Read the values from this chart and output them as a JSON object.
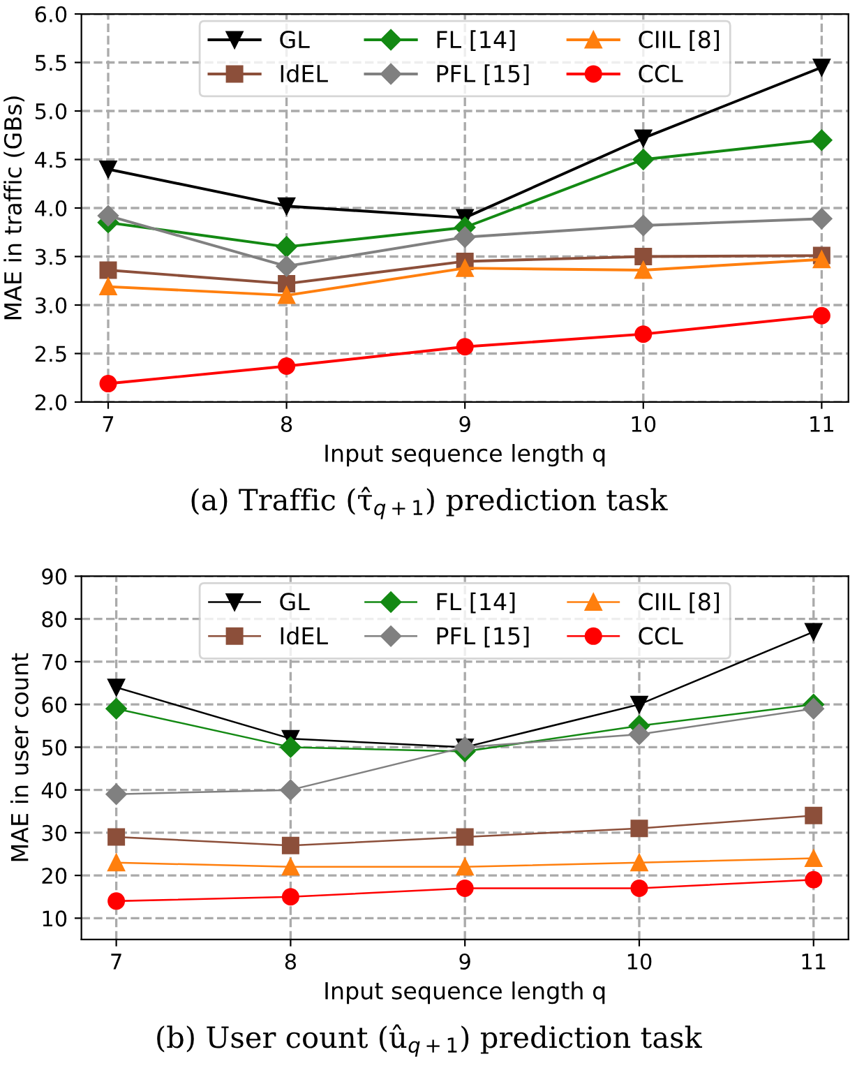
{
  "chart_data": [
    {
      "type": "line",
      "ylabel": "MAE in traffic (GBs)",
      "xlabel": "Input sequence length q",
      "x": [
        7,
        8,
        9,
        10,
        11
      ],
      "xlim": [
        6.85,
        11.15
      ],
      "xticks": [
        7,
        8,
        9,
        10,
        11
      ],
      "ylim": [
        2.0,
        6.0
      ],
      "yticks": [
        {
          "value": 2.0,
          "label": "2.0"
        },
        {
          "value": 2.5,
          "label": "2.5"
        },
        {
          "value": 3.0,
          "label": "3.0"
        },
        {
          "value": 3.5,
          "label": "3.5"
        },
        {
          "value": 4.0,
          "label": "4.0"
        },
        {
          "value": 4.5,
          "label": "4.5"
        },
        {
          "value": 5.0,
          "label": "5.0"
        },
        {
          "value": 5.5,
          "label": "5.5"
        },
        {
          "value": 6.0,
          "label": "6.0"
        }
      ],
      "grid": true,
      "legend": "top",
      "annotations": [
        "(a) Traffic (τ̂$_{q+1}$) prediction task"
      ],
      "series": [
        {
          "name": "GL",
          "color": "#000000",
          "marker": "triangle_down",
          "values": [
            4.4,
            4.02,
            3.9,
            4.72,
            5.45
          ]
        },
        {
          "name": "IdEL",
          "color": "#8c4f3a",
          "marker": "square",
          "values": [
            3.36,
            3.22,
            3.45,
            3.5,
            3.51
          ]
        },
        {
          "name": "FL [14]",
          "color": "#138913",
          "marker": "diamond",
          "values": [
            3.85,
            3.6,
            3.8,
            4.5,
            4.7
          ]
        },
        {
          "name": "PFL [15]",
          "color": "#808080",
          "marker": "diamond",
          "values": [
            3.92,
            3.4,
            3.7,
            3.82,
            3.89
          ]
        },
        {
          "name": "CIIL [8]",
          "color": "#ff7f0e",
          "marker": "triangle",
          "values": [
            3.19,
            3.1,
            3.38,
            3.36,
            3.47
          ]
        },
        {
          "name": "CCL",
          "color": "#ff0000",
          "marker": "circle",
          "values": [
            2.19,
            2.37,
            2.57,
            2.7,
            2.89
          ]
        }
      ]
    },
    {
      "type": "line",
      "ylabel": "MAE in user count",
      "xlabel": "Input sequence length q",
      "x": [
        7,
        8,
        9,
        10,
        11
      ],
      "xlim": [
        6.8,
        11.2
      ],
      "xticks": [
        7,
        8,
        9,
        10,
        11
      ],
      "ylim": [
        5,
        90
      ],
      "yticks": [
        10,
        20,
        30,
        40,
        50,
        60,
        70,
        80,
        90
      ],
      "grid": true,
      "legend": "top",
      "annotations": [
        "(b) User count (û$_{q+1}$) prediction task"
      ],
      "series": [
        {
          "name": "GL",
          "color": "#000000",
          "marker": "triangle_down",
          "values": [
            64,
            52,
            50,
            60,
            77
          ]
        },
        {
          "name": "IdEL",
          "color": "#8c4f3a",
          "marker": "square",
          "values": [
            29,
            27,
            29,
            31,
            34
          ]
        },
        {
          "name": "FL [14]",
          "color": "#138913",
          "marker": "diamond",
          "values": [
            59,
            50,
            49,
            55,
            60
          ]
        },
        {
          "name": "PFL [15]",
          "color": "#808080",
          "marker": "diamond",
          "values": [
            39,
            40,
            50,
            53,
            59
          ]
        },
        {
          "name": "CIIL [8]",
          "color": "#ff7f0e",
          "marker": "triangle",
          "values": [
            23,
            22,
            22,
            23,
            24
          ]
        },
        {
          "name": "CCL",
          "color": "#ff0000",
          "marker": "circle",
          "values": [
            14,
            15,
            17,
            17,
            19
          ]
        }
      ]
    }
  ]
}
